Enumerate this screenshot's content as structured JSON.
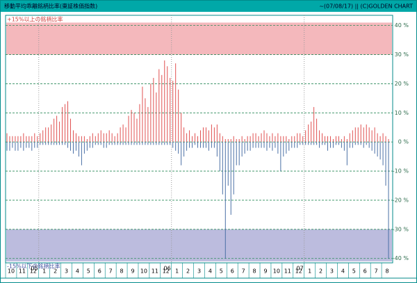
{
  "chart_data": {
    "type": "bar",
    "title": "移動平均乖離銘柄比率(東証株価指数)",
    "subtitle": "~(07/08/17) || (C)GOLDEN CHART",
    "annotations": [
      "+15%以上の銘柄比率",
      "-15%以下の銘柄比率"
    ],
    "bands": [
      {
        "from": 30,
        "to": 41,
        "color": "#f4b8bc"
      },
      {
        "from": -30,
        "to": -41,
        "color": "#bcbcde"
      }
    ],
    "months": [
      "10",
      "11",
      "12",
      "1",
      "2",
      "3",
      "4",
      "5",
      "6",
      "7",
      "8",
      "9",
      "10",
      "11",
      "12",
      "1",
      "2",
      "3",
      "4",
      "5",
      "6",
      "7",
      "8",
      "9",
      "10",
      "11",
      "12",
      "1",
      "2",
      "3",
      "4",
      "5",
      "6",
      "7",
      "8"
    ],
    "years": [
      {
        "month_index": 3,
        "label": "05"
      },
      {
        "month_index": 15,
        "label": "06"
      },
      {
        "month_index": 27,
        "label": "07"
      }
    ],
    "series": [
      {
        "color": "#e05050",
        "values": [
          3,
          2,
          2,
          2,
          2,
          2,
          3,
          2,
          2,
          2,
          3,
          2,
          3,
          4,
          5,
          5,
          6,
          8,
          9,
          7,
          12,
          13,
          14,
          8,
          4,
          3,
          2,
          2,
          2,
          1,
          2,
          3,
          2,
          3,
          4,
          3,
          3,
          4,
          3,
          2,
          3,
          5,
          6,
          5,
          9,
          11,
          10,
          8,
          13,
          19,
          15,
          12,
          20,
          22,
          17,
          25,
          23,
          28,
          26,
          22,
          21,
          27,
          18,
          10,
          5,
          3,
          4,
          2,
          3,
          2,
          4,
          5,
          5,
          4,
          6,
          5,
          6,
          3,
          2,
          1,
          1,
          1,
          2,
          1,
          1,
          2,
          1,
          2,
          2,
          3,
          3,
          2,
          3,
          4,
          3,
          2,
          3,
          2,
          3,
          2,
          2,
          2,
          1,
          2,
          2,
          3,
          3,
          2,
          4,
          6,
          7,
          12,
          8,
          4,
          3,
          2,
          2,
          2,
          1,
          2,
          2,
          1,
          2,
          1,
          3,
          4,
          5,
          5,
          6,
          5,
          6,
          5,
          4,
          5,
          3,
          2,
          3,
          2,
          1
        ]
      },
      {
        "color": "#4a6fa5",
        "values": [
          -3,
          -3,
          -2,
          -3,
          -3,
          -2,
          -3,
          -2,
          -2,
          -3,
          -2,
          -2,
          -1,
          -1,
          -1,
          -1,
          -1,
          -1,
          -1,
          -1,
          -1,
          -1,
          -2,
          -3,
          -4,
          -3,
          -5,
          -8,
          -4,
          -3,
          -2,
          -2,
          -1,
          -1,
          -1,
          -2,
          -2,
          -1,
          -1,
          -1,
          -1,
          -1,
          -1,
          -1,
          -1,
          -1,
          -1,
          -1,
          -1,
          -1,
          -1,
          -1,
          -1,
          -1,
          -1,
          -1,
          -1,
          -1,
          -1,
          -1,
          -2,
          -3,
          -4,
          -8,
          -5,
          -3,
          -2,
          -2,
          -1,
          -2,
          -2,
          -2,
          -2,
          -3,
          -2,
          -2,
          -5,
          -10,
          -18,
          -40,
          -15,
          -25,
          -18,
          -8,
          -8,
          -5,
          -4,
          -3,
          -3,
          -2,
          -2,
          -2,
          -2,
          -2,
          -3,
          -2,
          -3,
          -2,
          -4,
          -10,
          -5,
          -4,
          -3,
          -2,
          -2,
          -2,
          -1,
          -1,
          -1,
          -1,
          -1,
          -1,
          -1,
          -2,
          -1,
          -1,
          -3,
          -2,
          -2,
          -1,
          -1,
          -2,
          -3,
          -8,
          -2,
          -2,
          -1,
          -1,
          -1,
          -2,
          -1,
          -2,
          -3,
          -4,
          -5,
          -6,
          -8,
          -15,
          -40
        ]
      }
    ],
    "ylim": [
      -41.5,
      43.5
    ],
    "yticks": [
      {
        "value": 40,
        "label": "40 %"
      },
      {
        "value": 30,
        "label": "30 %"
      },
      {
        "value": 20,
        "label": "20 %"
      },
      {
        "value": 10,
        "label": "10 %"
      },
      {
        "value": 0,
        "label": "0 %"
      },
      {
        "value": -10,
        "label": "-10 %"
      },
      {
        "value": -20,
        "label": "-20 %"
      },
      {
        "value": -30,
        "label": "-30 %"
      },
      {
        "value": -40,
        "label": "-40 %"
      }
    ],
    "grid": true
  }
}
